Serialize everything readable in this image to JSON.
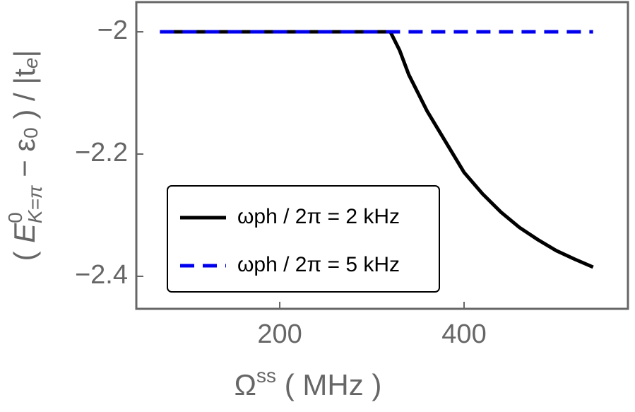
{
  "chart_data": {
    "type": "line",
    "x_label": {
      "main": "Ω",
      "sup": "ss",
      "rest": " ( MHz )"
    },
    "y_label": {
      "open": "( ",
      "E": "E",
      "sup": "0",
      "sub": "K=π",
      "mid": " − ε",
      "sub2": "0",
      "close": " ) / |t",
      "sub3": "e",
      "end": "|"
    },
    "x": [
      70,
      320,
      330,
      340,
      350,
      360,
      380,
      400,
      420,
      440,
      460,
      480,
      500,
      520,
      540
    ],
    "series": [
      {
        "name": "ωph / 2π = 2 kHz",
        "color": "#000000",
        "dash": false,
        "values": [
          -2,
          -2,
          -2.03,
          -2.07,
          -2.1,
          -2.13,
          -2.18,
          -2.23,
          -2.265,
          -2.295,
          -2.32,
          -2.34,
          -2.358,
          -2.372,
          -2.385
        ]
      },
      {
        "name": "ωph / 2π = 5 kHz",
        "color": "#0000ee",
        "dash": true,
        "values": [
          -2,
          -2,
          -2,
          -2,
          -2,
          -2,
          -2,
          -2,
          -2,
          -2,
          -2,
          -2,
          -2,
          -2,
          -2
        ]
      }
    ],
    "xlim": [
      44.4,
      577.8
    ],
    "ylim": [
      -2.4532,
      -1.9514
    ],
    "xticks": [
      200,
      400
    ],
    "yticks": [
      {
        "value": -2,
        "label": "−2"
      },
      {
        "value": -2.2,
        "label": "−2.2"
      },
      {
        "value": -2.4,
        "label": "−2.4"
      }
    ],
    "legend": "lower-left"
  }
}
